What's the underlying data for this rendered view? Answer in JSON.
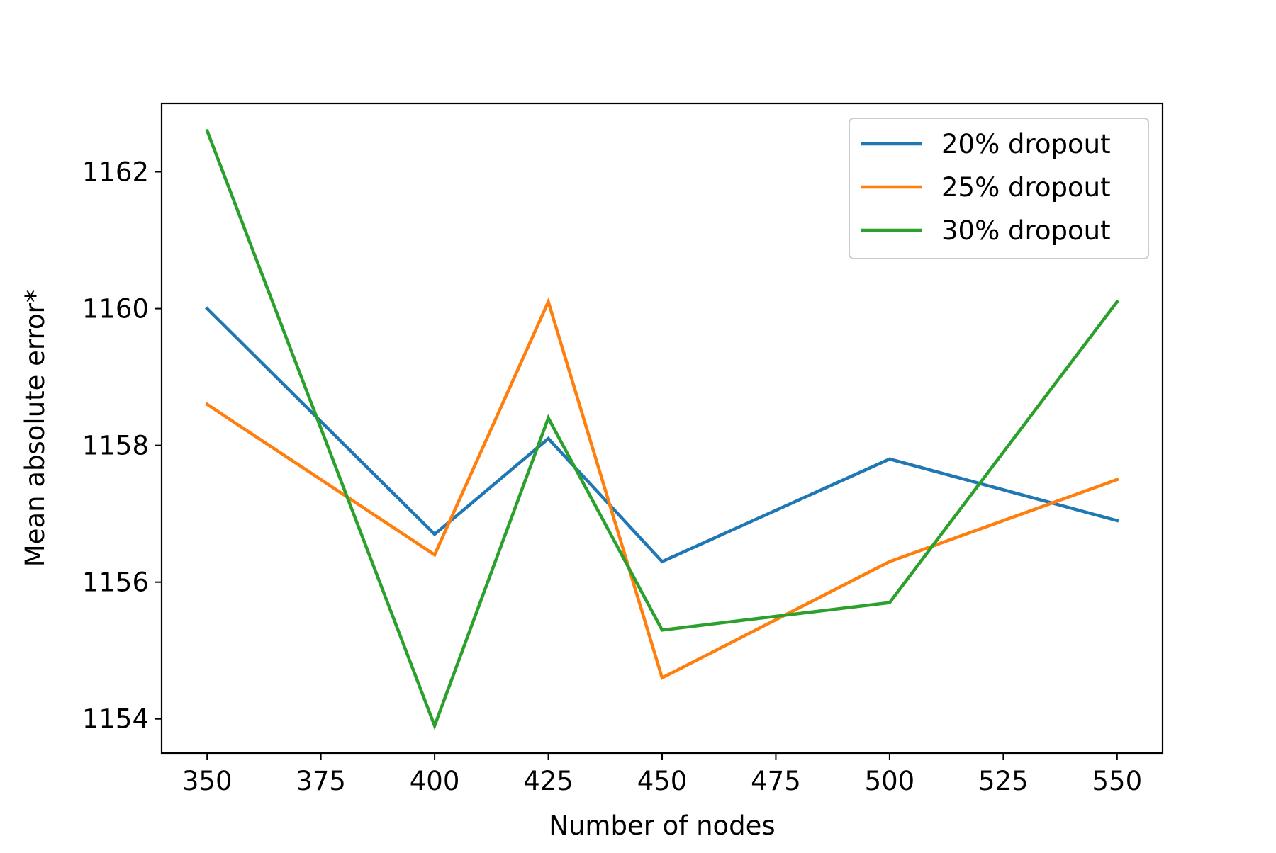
{
  "chart_data": {
    "type": "line",
    "title": "",
    "xlabel": "Number of nodes",
    "ylabel": "Mean absolute error*",
    "x": [
      350,
      400,
      425,
      450,
      500,
      550
    ],
    "xlim": [
      340,
      560
    ],
    "ylim": [
      1153.5,
      1163.0
    ],
    "xticks": [
      350,
      375,
      400,
      425,
      450,
      475,
      500,
      525,
      550
    ],
    "yticks": [
      1154,
      1156,
      1158,
      1160,
      1162
    ],
    "grid": false,
    "legend_position": "top-right",
    "series": [
      {
        "name": "20% dropout",
        "color": "#1f77b4",
        "values": [
          1160.0,
          1156.7,
          1158.1,
          1156.3,
          1157.8,
          1156.9
        ]
      },
      {
        "name": "25% dropout",
        "color": "#ff7f0e",
        "values": [
          1158.6,
          1156.4,
          1160.1,
          1154.6,
          1156.3,
          1157.5
        ]
      },
      {
        "name": "30% dropout",
        "color": "#2ca02c",
        "values": [
          1162.6,
          1153.9,
          1158.4,
          1155.3,
          1155.7,
          1160.1
        ]
      }
    ]
  }
}
